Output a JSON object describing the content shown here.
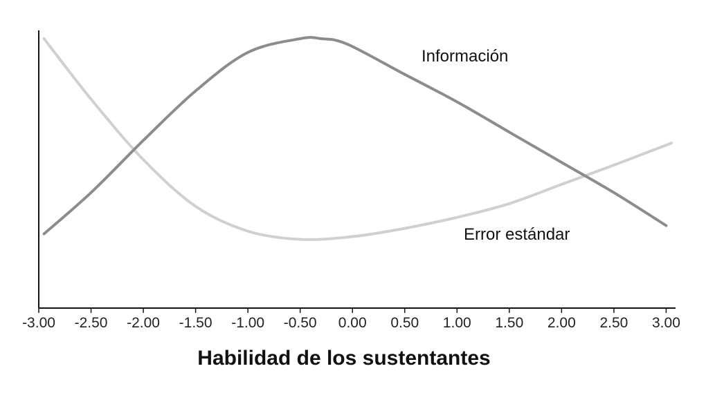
{
  "chart_data": {
    "type": "line",
    "title": "",
    "xlabel": "Habilidad de los sustentantes",
    "ylabel": "",
    "xlim": [
      -3.0,
      3.05
    ],
    "ylim": [
      0,
      1
    ],
    "grid": false,
    "legend": "inline labels",
    "x_ticks": [
      "-3.00",
      "-2.50",
      "-2.00",
      "-1.50",
      "-1.00",
      "-0.50",
      "0.00",
      "0.50",
      "1.00",
      "1.50",
      "2.00",
      "2.50",
      "3.00"
    ],
    "series": [
      {
        "name": "Información",
        "color": "#8c8c8c",
        "points": [
          [
            -2.95,
            0.27
          ],
          [
            -2.5,
            0.42
          ],
          [
            -2.0,
            0.61
          ],
          [
            -1.5,
            0.79
          ],
          [
            -1.0,
            0.93
          ],
          [
            -0.5,
            0.98
          ],
          [
            -0.3,
            0.98
          ],
          [
            -0.05,
            0.96
          ],
          [
            0.5,
            0.85
          ],
          [
            1.0,
            0.75
          ],
          [
            1.5,
            0.64
          ],
          [
            2.0,
            0.53
          ],
          [
            2.5,
            0.42
          ],
          [
            3.0,
            0.3
          ]
        ]
      },
      {
        "name": "Error estándar",
        "color": "#d0d0d0",
        "points": [
          [
            -2.95,
            0.98
          ],
          [
            -2.5,
            0.76
          ],
          [
            -2.0,
            0.54
          ],
          [
            -1.5,
            0.37
          ],
          [
            -1.0,
            0.28
          ],
          [
            -0.5,
            0.25
          ],
          [
            0.0,
            0.26
          ],
          [
            0.5,
            0.29
          ],
          [
            1.0,
            0.33
          ],
          [
            1.5,
            0.38
          ],
          [
            2.0,
            0.45
          ],
          [
            2.5,
            0.52
          ],
          [
            3.05,
            0.6
          ]
        ]
      }
    ]
  }
}
